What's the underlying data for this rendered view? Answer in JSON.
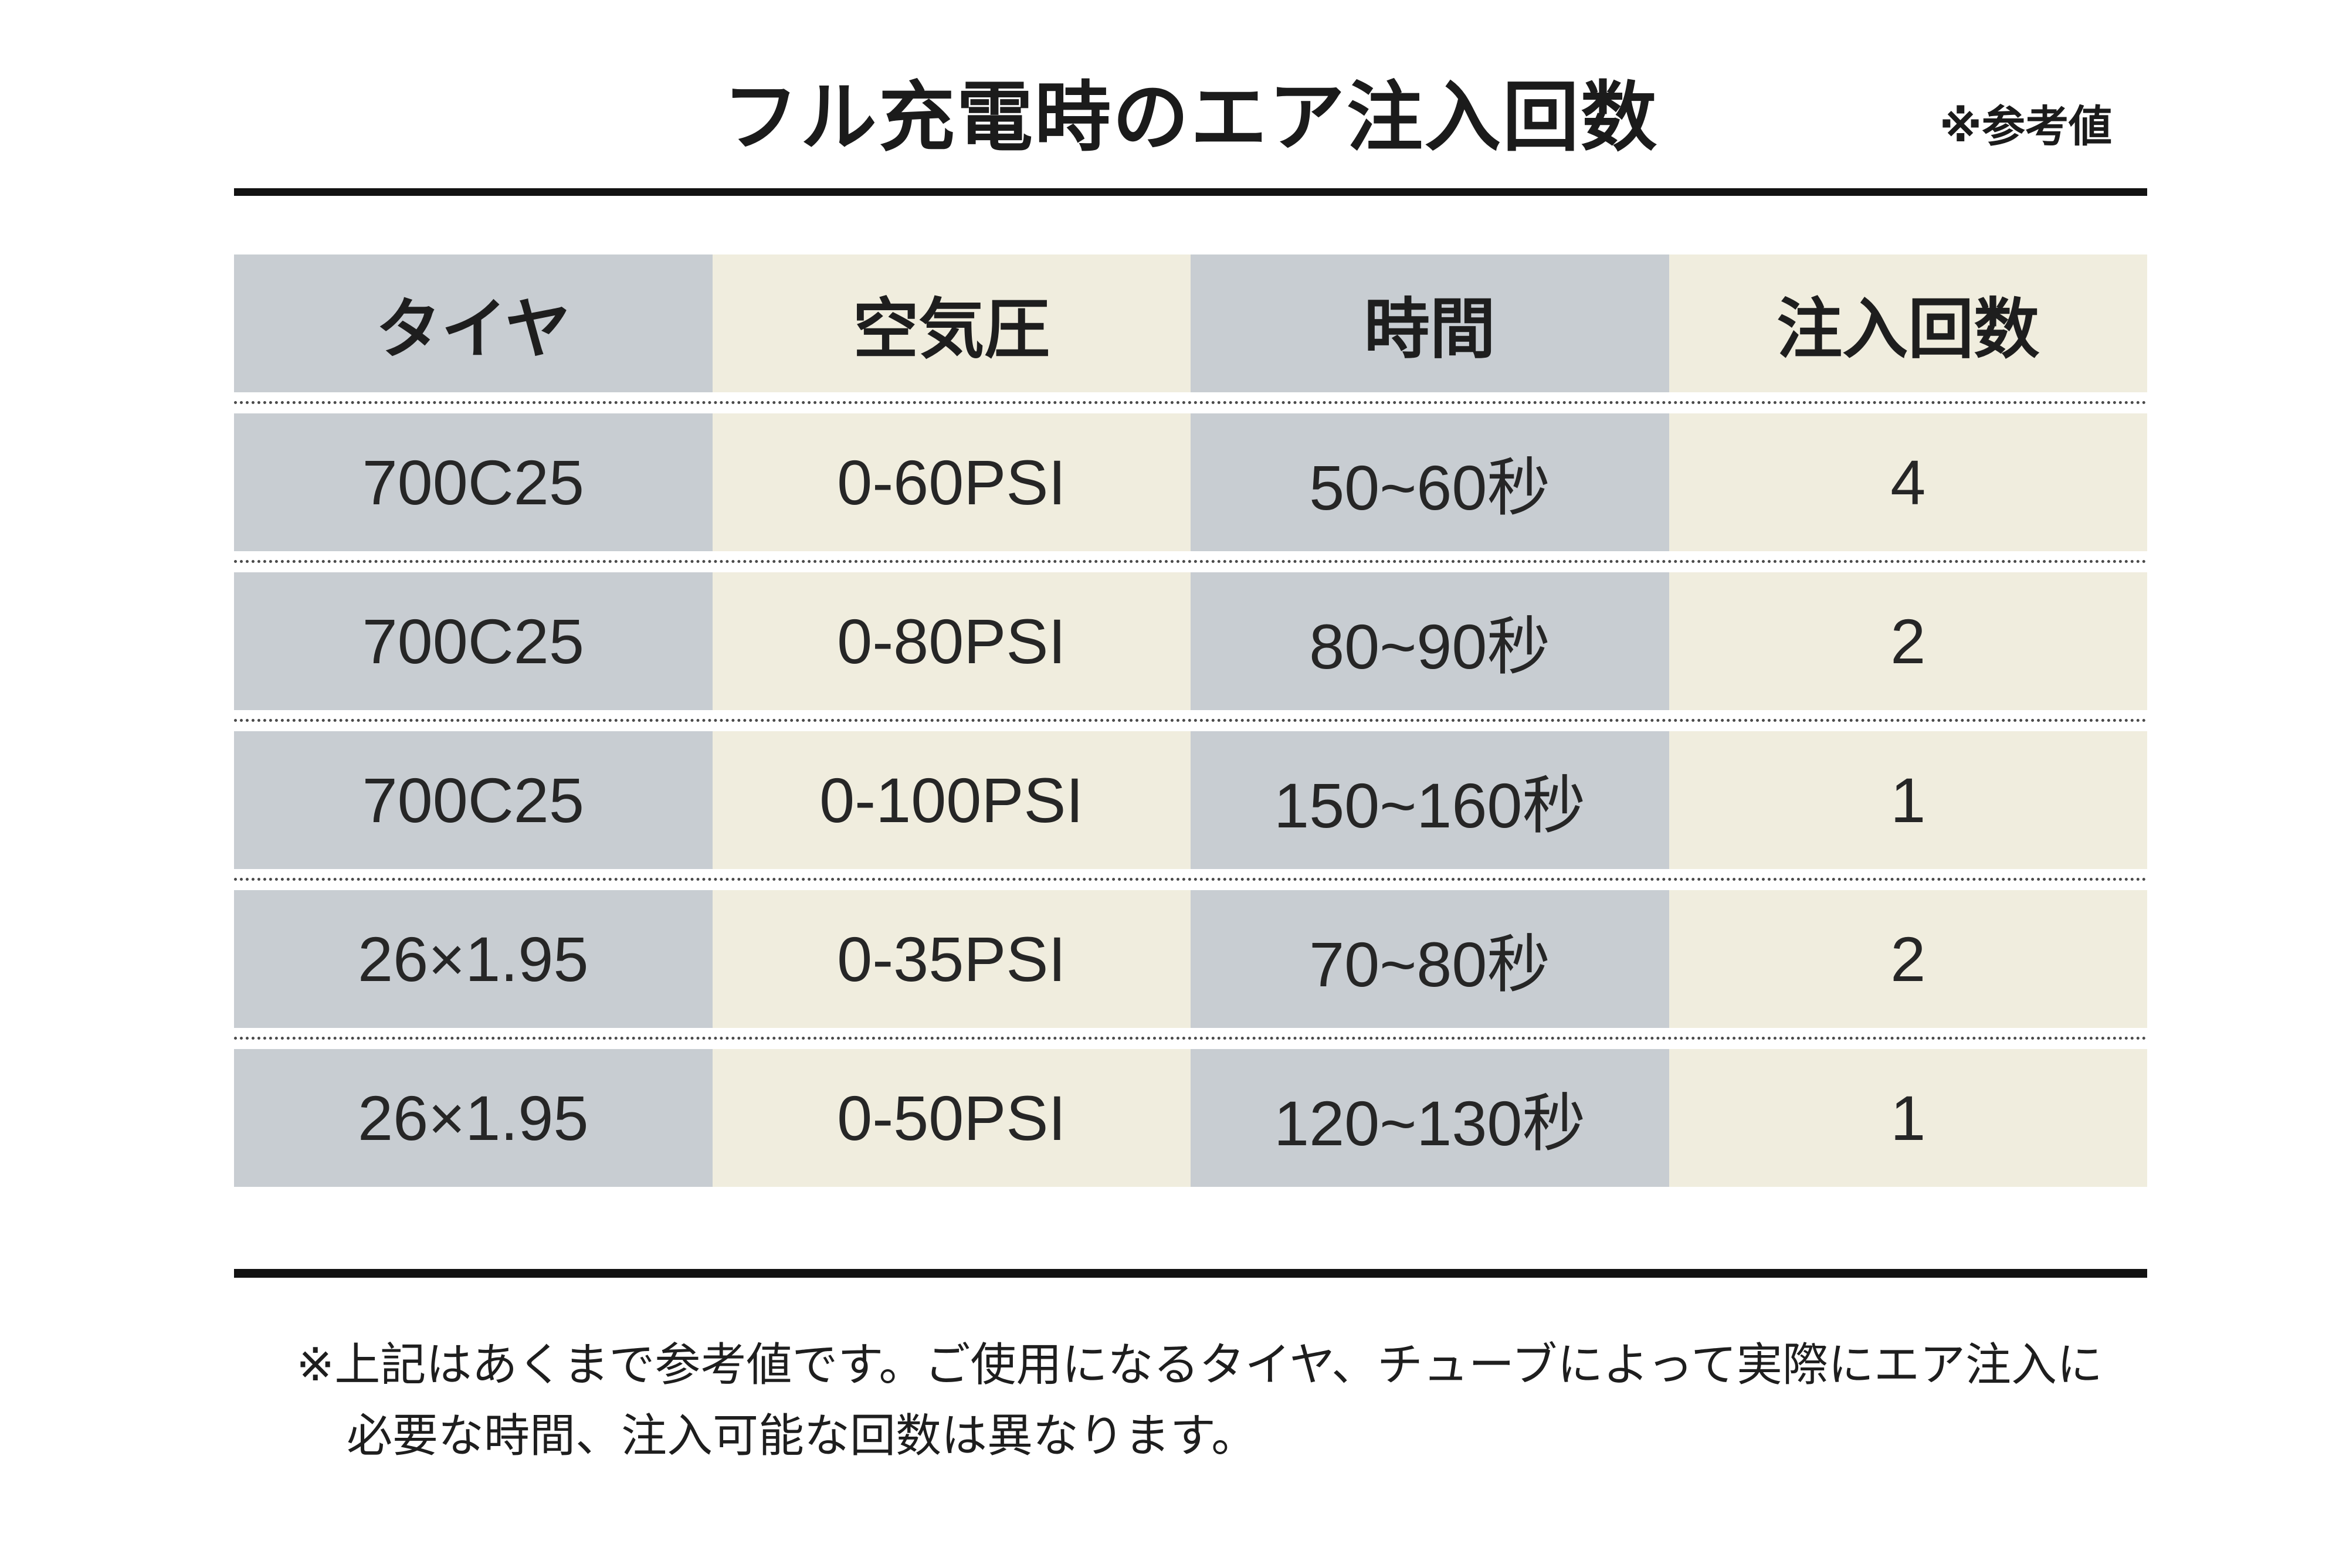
{
  "chart_data": {
    "type": "table",
    "title": "フル充電時のエア注入回数",
    "reference_note": "※参考値",
    "columns": [
      "タイヤ",
      "空気圧",
      "時間",
      "注入回数"
    ],
    "rows": [
      [
        "700C25",
        "0-60PSI",
        "50~60秒",
        "4"
      ],
      [
        "700C25",
        "0-80PSI",
        "80~90秒",
        "2"
      ],
      [
        "700C25",
        "0-100PSI",
        "150~160秒",
        "1"
      ],
      [
        "26×1.95",
        "0-35PSI",
        "70~80秒",
        "2"
      ],
      [
        "26×1.95",
        "0-50PSI",
        "120~130秒",
        "1"
      ]
    ],
    "footnote_line1": "※上記はあくまで参考値です。ご使用になるタイヤ、チューブによって実際にエア注入に",
    "footnote_line2": "必要な時間、注入可能な回数は異なります。",
    "layout": {
      "column_colors": [
        "gray",
        "cream",
        "gray",
        "cream"
      ],
      "grid": "off",
      "legend": "none"
    }
  },
  "colors": {
    "gray_cell": "#c8cdd2",
    "cream_cell": "#f0edde",
    "text": "#262626",
    "rule": "#121212"
  }
}
